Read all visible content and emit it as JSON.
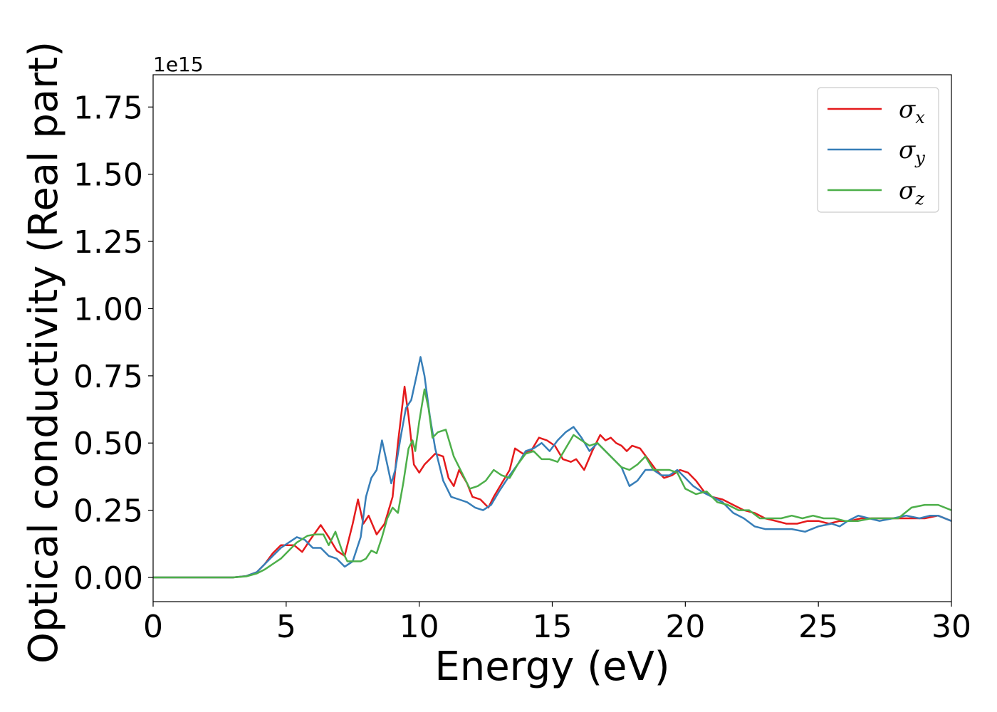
{
  "chart_data": {
    "type": "line",
    "title": "",
    "xlabel": "Energy (eV)",
    "ylabel": "Optical conductivity (Real part)",
    "y_offset_label": "1e15",
    "xlim": [
      0,
      30
    ],
    "ylim": [
      -0.09,
      1.87
    ],
    "x_ticks": [
      0,
      5,
      10,
      15,
      20,
      25,
      30
    ],
    "x_tick_labels": [
      "0",
      "5",
      "10",
      "15",
      "20",
      "25",
      "30"
    ],
    "y_ticks": [
      0.0,
      0.25,
      0.5,
      0.75,
      1.0,
      1.25,
      1.5,
      1.75
    ],
    "y_tick_labels": [
      "0.00",
      "0.25",
      "0.50",
      "0.75",
      "1.00",
      "1.25",
      "1.50",
      "1.75"
    ],
    "grid": false,
    "legend_position": "top-right",
    "series": [
      {
        "name": "σx",
        "legend_main": "σ",
        "legend_sub": "x",
        "color": "#e41a1c",
        "points": [
          [
            0,
            0
          ],
          [
            3,
            0
          ],
          [
            3.5,
            0.005
          ],
          [
            3.9,
            0.02
          ],
          [
            4.2,
            0.05
          ],
          [
            4.5,
            0.09
          ],
          [
            4.8,
            0.12
          ],
          [
            5.1,
            0.12
          ],
          [
            5.3,
            0.12
          ],
          [
            5.6,
            0.095
          ],
          [
            5.9,
            0.14
          ],
          [
            6.3,
            0.195
          ],
          [
            6.6,
            0.15
          ],
          [
            6.9,
            0.1
          ],
          [
            7.2,
            0.08
          ],
          [
            7.5,
            0.2
          ],
          [
            7.7,
            0.29
          ],
          [
            7.9,
            0.2
          ],
          [
            8.1,
            0.23
          ],
          [
            8.4,
            0.16
          ],
          [
            8.7,
            0.2
          ],
          [
            9.0,
            0.3
          ],
          [
            9.2,
            0.5
          ],
          [
            9.45,
            0.71
          ],
          [
            9.6,
            0.6
          ],
          [
            9.8,
            0.42
          ],
          [
            10.0,
            0.39
          ],
          [
            10.2,
            0.42
          ],
          [
            10.4,
            0.44
          ],
          [
            10.6,
            0.46
          ],
          [
            10.9,
            0.45
          ],
          [
            11.1,
            0.37
          ],
          [
            11.3,
            0.34
          ],
          [
            11.5,
            0.4
          ],
          [
            11.8,
            0.35
          ],
          [
            12.0,
            0.3
          ],
          [
            12.3,
            0.29
          ],
          [
            12.6,
            0.26
          ],
          [
            12.8,
            0.3
          ],
          [
            13.1,
            0.35
          ],
          [
            13.4,
            0.4
          ],
          [
            13.6,
            0.48
          ],
          [
            13.9,
            0.46
          ],
          [
            14.2,
            0.47
          ],
          [
            14.5,
            0.52
          ],
          [
            14.8,
            0.51
          ],
          [
            15.1,
            0.49
          ],
          [
            15.4,
            0.44
          ],
          [
            15.7,
            0.43
          ],
          [
            15.9,
            0.44
          ],
          [
            16.2,
            0.4
          ],
          [
            16.5,
            0.47
          ],
          [
            16.8,
            0.53
          ],
          [
            17.0,
            0.51
          ],
          [
            17.2,
            0.52
          ],
          [
            17.4,
            0.5
          ],
          [
            17.6,
            0.49
          ],
          [
            17.8,
            0.47
          ],
          [
            18.0,
            0.49
          ],
          [
            18.3,
            0.48
          ],
          [
            18.6,
            0.44
          ],
          [
            18.9,
            0.4
          ],
          [
            19.2,
            0.37
          ],
          [
            19.5,
            0.38
          ],
          [
            19.8,
            0.4
          ],
          [
            20.1,
            0.39
          ],
          [
            20.4,
            0.36
          ],
          [
            20.7,
            0.32
          ],
          [
            21.0,
            0.3
          ],
          [
            21.4,
            0.29
          ],
          [
            21.8,
            0.27
          ],
          [
            22.2,
            0.25
          ],
          [
            22.6,
            0.24
          ],
          [
            23.0,
            0.22
          ],
          [
            23.4,
            0.21
          ],
          [
            23.8,
            0.2
          ],
          [
            24.2,
            0.2
          ],
          [
            24.6,
            0.21
          ],
          [
            25.0,
            0.21
          ],
          [
            25.4,
            0.2
          ],
          [
            25.8,
            0.21
          ],
          [
            26.2,
            0.21
          ],
          [
            26.6,
            0.22
          ],
          [
            27.0,
            0.22
          ],
          [
            27.5,
            0.22
          ],
          [
            28.0,
            0.22
          ],
          [
            28.5,
            0.22
          ],
          [
            29.0,
            0.22
          ],
          [
            29.5,
            0.23
          ],
          [
            30,
            0.21
          ]
        ]
      },
      {
        "name": "σy",
        "legend_main": "σ",
        "legend_sub": "y",
        "color": "#377eb8",
        "points": [
          [
            0,
            0
          ],
          [
            3,
            0
          ],
          [
            3.5,
            0.005
          ],
          [
            3.9,
            0.02
          ],
          [
            4.2,
            0.05
          ],
          [
            4.5,
            0.08
          ],
          [
            4.8,
            0.11
          ],
          [
            5.1,
            0.13
          ],
          [
            5.4,
            0.15
          ],
          [
            5.7,
            0.14
          ],
          [
            6.0,
            0.11
          ],
          [
            6.3,
            0.11
          ],
          [
            6.6,
            0.08
          ],
          [
            6.9,
            0.07
          ],
          [
            7.2,
            0.04
          ],
          [
            7.5,
            0.06
          ],
          [
            7.8,
            0.15
          ],
          [
            8.0,
            0.3
          ],
          [
            8.2,
            0.37
          ],
          [
            8.4,
            0.4
          ],
          [
            8.6,
            0.51
          ],
          [
            8.8,
            0.42
          ],
          [
            8.95,
            0.35
          ],
          [
            9.1,
            0.4
          ],
          [
            9.3,
            0.52
          ],
          [
            9.5,
            0.63
          ],
          [
            9.7,
            0.66
          ],
          [
            9.9,
            0.75
          ],
          [
            10.05,
            0.82
          ],
          [
            10.2,
            0.75
          ],
          [
            10.4,
            0.6
          ],
          [
            10.6,
            0.48
          ],
          [
            10.9,
            0.36
          ],
          [
            11.2,
            0.3
          ],
          [
            11.5,
            0.29
          ],
          [
            11.8,
            0.28
          ],
          [
            12.1,
            0.26
          ],
          [
            12.4,
            0.25
          ],
          [
            12.7,
            0.27
          ],
          [
            13.0,
            0.32
          ],
          [
            13.4,
            0.38
          ],
          [
            13.7,
            0.42
          ],
          [
            14.0,
            0.47
          ],
          [
            14.3,
            0.48
          ],
          [
            14.6,
            0.5
          ],
          [
            14.9,
            0.47
          ],
          [
            15.2,
            0.51
          ],
          [
            15.5,
            0.54
          ],
          [
            15.8,
            0.56
          ],
          [
            16.1,
            0.52
          ],
          [
            16.4,
            0.47
          ],
          [
            16.7,
            0.5
          ],
          [
            17.0,
            0.47
          ],
          [
            17.3,
            0.44
          ],
          [
            17.6,
            0.41
          ],
          [
            17.9,
            0.34
          ],
          [
            18.2,
            0.36
          ],
          [
            18.5,
            0.4
          ],
          [
            18.8,
            0.4
          ],
          [
            19.1,
            0.38
          ],
          [
            19.4,
            0.38
          ],
          [
            19.7,
            0.4
          ],
          [
            20.0,
            0.37
          ],
          [
            20.3,
            0.34
          ],
          [
            20.6,
            0.32
          ],
          [
            21.0,
            0.3
          ],
          [
            21.4,
            0.28
          ],
          [
            21.8,
            0.24
          ],
          [
            22.2,
            0.22
          ],
          [
            22.6,
            0.19
          ],
          [
            23.0,
            0.18
          ],
          [
            23.5,
            0.18
          ],
          [
            24.0,
            0.18
          ],
          [
            24.5,
            0.17
          ],
          [
            25.0,
            0.19
          ],
          [
            25.5,
            0.2
          ],
          [
            25.8,
            0.19
          ],
          [
            26.1,
            0.21
          ],
          [
            26.5,
            0.23
          ],
          [
            26.9,
            0.22
          ],
          [
            27.3,
            0.21
          ],
          [
            27.8,
            0.22
          ],
          [
            28.3,
            0.23
          ],
          [
            28.8,
            0.22
          ],
          [
            29.2,
            0.23
          ],
          [
            29.5,
            0.23
          ],
          [
            30,
            0.21
          ]
        ]
      },
      {
        "name": "σz",
        "legend_main": "σ",
        "legend_sub": "z",
        "color": "#4daf4a",
        "points": [
          [
            0,
            0
          ],
          [
            3,
            0
          ],
          [
            3.5,
            0.004
          ],
          [
            3.9,
            0.015
          ],
          [
            4.2,
            0.03
          ],
          [
            4.5,
            0.05
          ],
          [
            4.8,
            0.07
          ],
          [
            5.1,
            0.1
          ],
          [
            5.4,
            0.13
          ],
          [
            5.8,
            0.155
          ],
          [
            6.1,
            0.16
          ],
          [
            6.4,
            0.16
          ],
          [
            6.6,
            0.12
          ],
          [
            6.85,
            0.17
          ],
          [
            7.1,
            0.1
          ],
          [
            7.3,
            0.06
          ],
          [
            7.6,
            0.06
          ],
          [
            7.8,
            0.06
          ],
          [
            8.0,
            0.07
          ],
          [
            8.2,
            0.1
          ],
          [
            8.4,
            0.09
          ],
          [
            8.6,
            0.15
          ],
          [
            8.8,
            0.22
          ],
          [
            9.0,
            0.26
          ],
          [
            9.2,
            0.24
          ],
          [
            9.4,
            0.35
          ],
          [
            9.6,
            0.48
          ],
          [
            9.75,
            0.51
          ],
          [
            9.85,
            0.47
          ],
          [
            10.0,
            0.58
          ],
          [
            10.2,
            0.7
          ],
          [
            10.35,
            0.63
          ],
          [
            10.5,
            0.52
          ],
          [
            10.7,
            0.54
          ],
          [
            11.0,
            0.55
          ],
          [
            11.3,
            0.45
          ],
          [
            11.6,
            0.39
          ],
          [
            11.9,
            0.33
          ],
          [
            12.2,
            0.34
          ],
          [
            12.5,
            0.36
          ],
          [
            12.8,
            0.4
          ],
          [
            13.1,
            0.38
          ],
          [
            13.4,
            0.37
          ],
          [
            13.7,
            0.42
          ],
          [
            14.0,
            0.46
          ],
          [
            14.3,
            0.47
          ],
          [
            14.6,
            0.44
          ],
          [
            14.9,
            0.44
          ],
          [
            15.2,
            0.43
          ],
          [
            15.5,
            0.48
          ],
          [
            15.8,
            0.53
          ],
          [
            16.1,
            0.51
          ],
          [
            16.4,
            0.49
          ],
          [
            16.7,
            0.5
          ],
          [
            17.0,
            0.47
          ],
          [
            17.3,
            0.44
          ],
          [
            17.6,
            0.41
          ],
          [
            17.9,
            0.4
          ],
          [
            18.2,
            0.42
          ],
          [
            18.5,
            0.45
          ],
          [
            18.8,
            0.4
          ],
          [
            19.1,
            0.4
          ],
          [
            19.4,
            0.4
          ],
          [
            19.7,
            0.39
          ],
          [
            20.0,
            0.33
          ],
          [
            20.4,
            0.31
          ],
          [
            20.8,
            0.32
          ],
          [
            21.2,
            0.28
          ],
          [
            21.6,
            0.27
          ],
          [
            22.0,
            0.25
          ],
          [
            22.4,
            0.25
          ],
          [
            22.8,
            0.22
          ],
          [
            23.2,
            0.22
          ],
          [
            23.6,
            0.22
          ],
          [
            24.0,
            0.23
          ],
          [
            24.4,
            0.22
          ],
          [
            24.8,
            0.23
          ],
          [
            25.2,
            0.22
          ],
          [
            25.6,
            0.22
          ],
          [
            26.0,
            0.21
          ],
          [
            26.5,
            0.21
          ],
          [
            27.0,
            0.22
          ],
          [
            27.5,
            0.22
          ],
          [
            28.0,
            0.22
          ],
          [
            28.5,
            0.26
          ],
          [
            29.0,
            0.27
          ],
          [
            29.5,
            0.27
          ],
          [
            30,
            0.25
          ]
        ]
      }
    ]
  }
}
